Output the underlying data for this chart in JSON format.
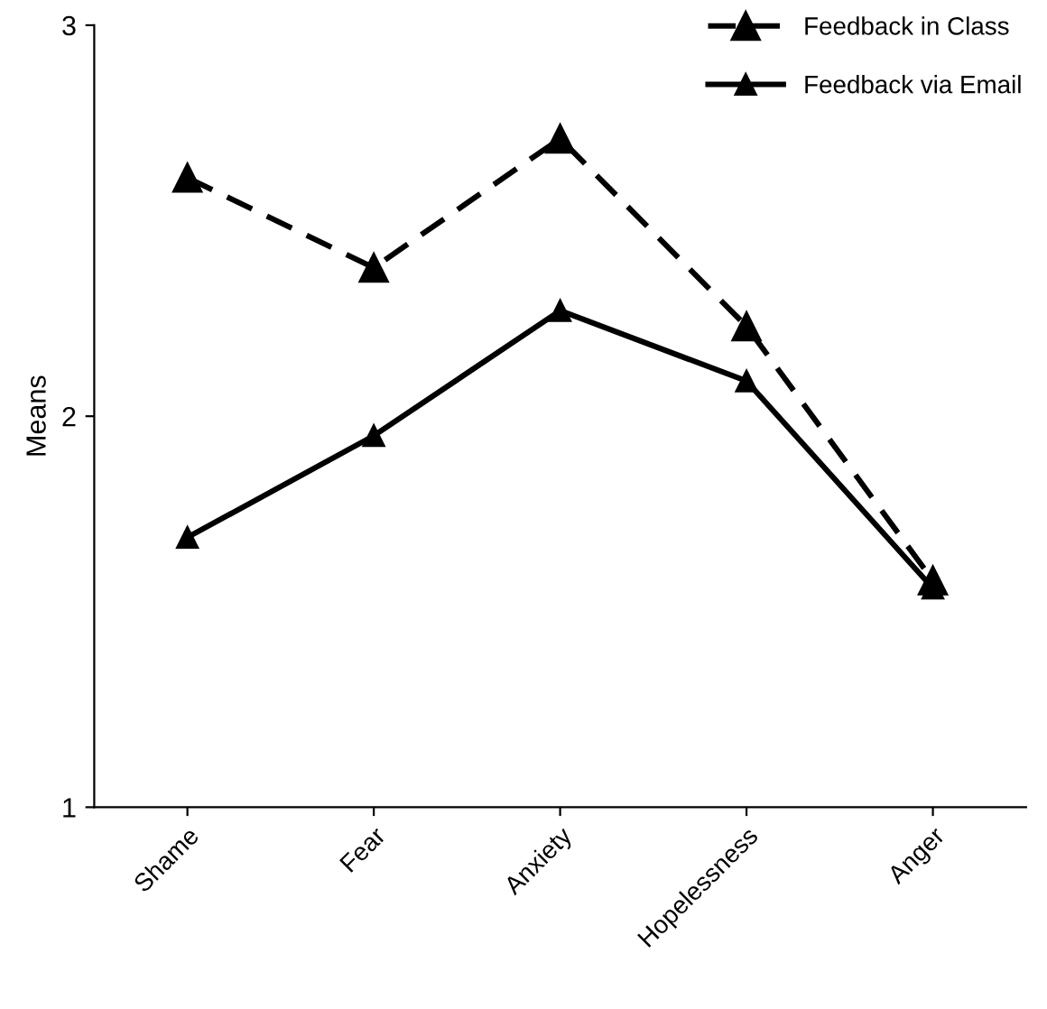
{
  "chart_data": {
    "type": "line",
    "ylabel": "Means",
    "categories": [
      "Shame",
      "Fear",
      "Anxiety",
      "Hopelessness",
      "Anger"
    ],
    "series": [
      {
        "name": "Feedback in Class",
        "color": "#000000",
        "line_style": "dashed",
        "values": [
          2.61,
          2.38,
          2.71,
          2.23,
          1.58
        ]
      },
      {
        "name": "Feedback via Email",
        "color": "#000000",
        "line_style": "solid",
        "values": [
          1.69,
          1.95,
          2.27,
          2.09,
          1.56
        ]
      }
    ],
    "ylim": [
      1,
      3
    ],
    "yticks": [
      1,
      2,
      3
    ],
    "grid": false,
    "legend": "top right",
    "marker": "triangle"
  }
}
